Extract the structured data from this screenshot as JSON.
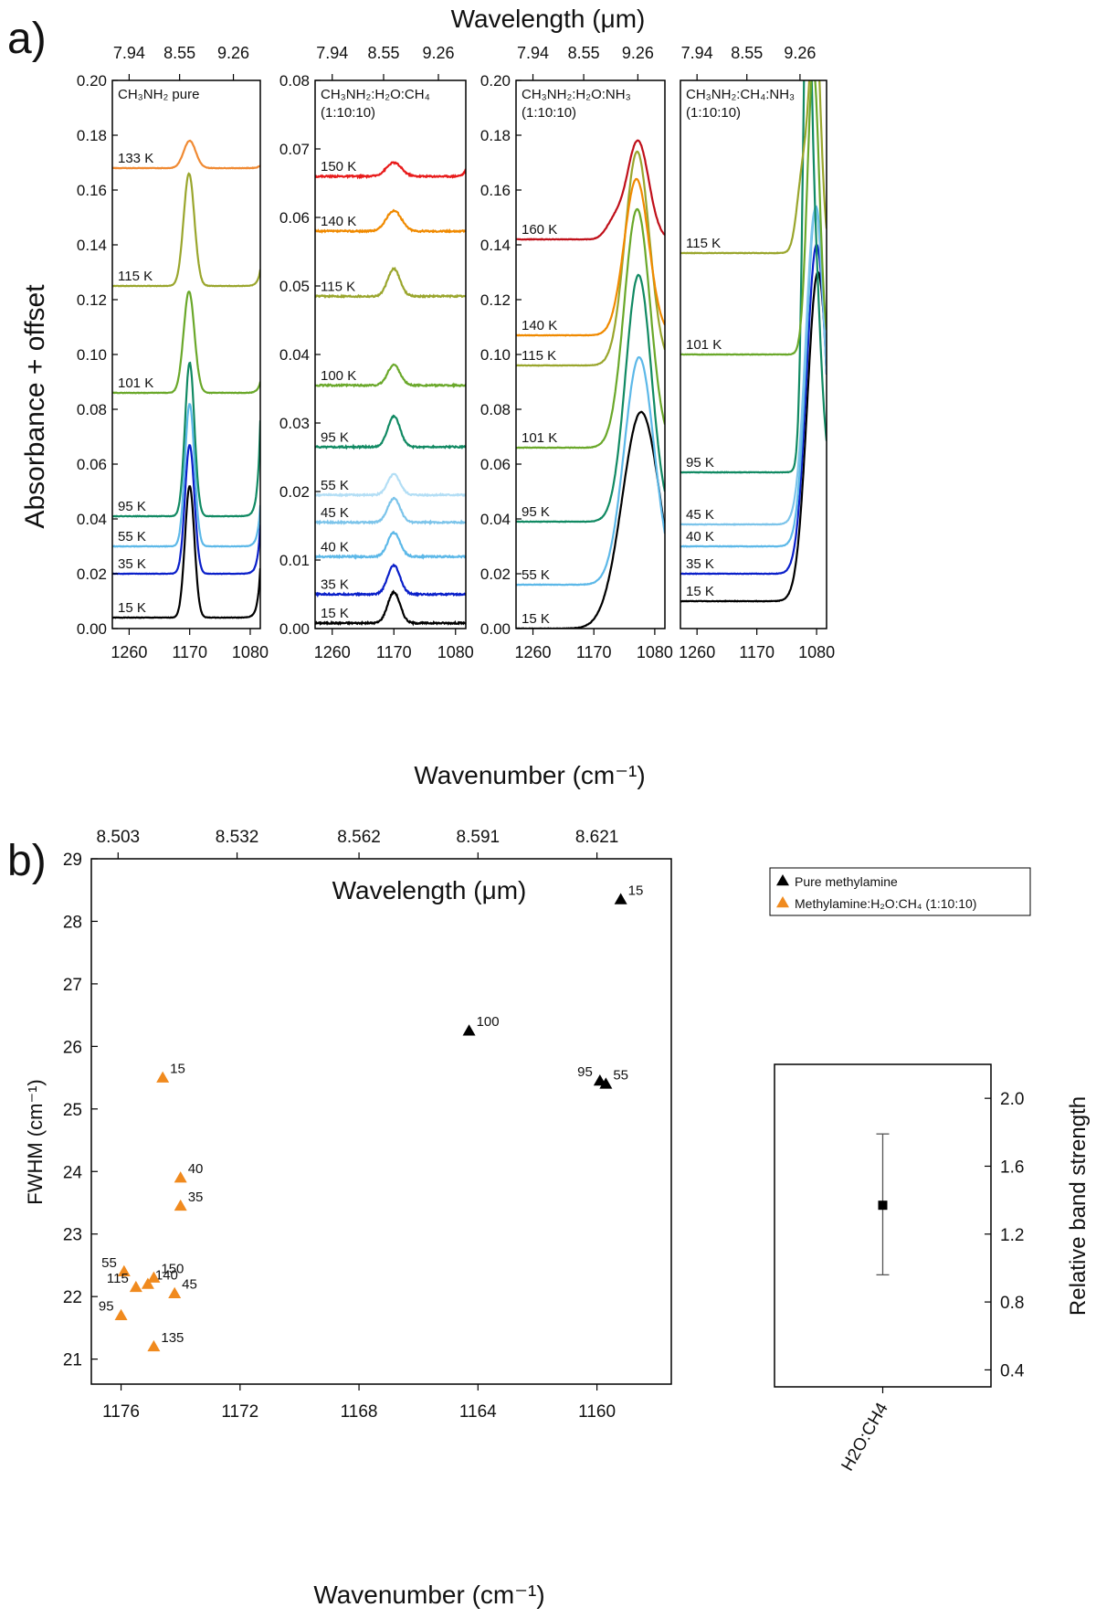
{
  "figure": {
    "panel_a_label": "a)",
    "panel_b_label": "b)",
    "a_top_axis_label": "Wavelength (μm)",
    "a_left_axis_label": "Absorbance + offset",
    "a_bottom_axis_label": "Wavenumber (cm⁻¹)",
    "b_top_axis_label": "Wavelength (μm)",
    "b_bottom_axis_label": "Wavenumber (cm⁻¹)",
    "b_left_axis_label": "FWHM (cm⁻¹)",
    "b_right_axis_label": "Relative band strength"
  },
  "chart_data": [
    {
      "type": "line",
      "panel": "a1",
      "title": "CH₃NH₂ pure",
      "ylim": [
        0,
        0.2
      ],
      "yticks": [
        0.0,
        0.02,
        0.04,
        0.06,
        0.08,
        0.1,
        0.12,
        0.14,
        0.16,
        0.18,
        0.2
      ],
      "xlim": [
        1285,
        1065
      ],
      "xticks": [
        1260,
        1170,
        1080
      ],
      "top_ticks": [
        "7.94",
        "8.55",
        "9.26"
      ],
      "series": [
        {
          "label": "15 K",
          "color": "#000000",
          "base": 0.004,
          "peaks": [
            {
              "c": 1170,
              "h": 0.048,
              "w": 7
            }
          ],
          "end_rise": 0.018
        },
        {
          "label": "35 K",
          "color": "#0a1fc9",
          "base": 0.02,
          "peaks": [
            {
              "c": 1170,
              "h": 0.047,
              "w": 7
            }
          ],
          "end_rise": 0.018
        },
        {
          "label": "55 K",
          "color": "#5cb8e8",
          "base": 0.03,
          "peaks": [
            {
              "c": 1170,
              "h": 0.052,
              "w": 7
            }
          ],
          "end_rise": 0.015
        },
        {
          "label": "95 K",
          "color": "#118a63",
          "base": 0.041,
          "peaks": [
            {
              "c": 1170,
              "h": 0.056,
              "w": 7
            }
          ],
          "end_rise": 0.035
        },
        {
          "label": "101 K",
          "color": "#6aa82a",
          "base": 0.086,
          "peaks": [
            {
              "c": 1171,
              "h": 0.037,
              "w": 8
            }
          ],
          "end_rise": 0.004
        },
        {
          "label": "115 K",
          "color": "#9aa62d",
          "base": 0.125,
          "peaks": [
            {
              "c": 1171,
              "h": 0.041,
              "w": 8
            }
          ],
          "end_rise": 0.006
        },
        {
          "label": "133 K",
          "color": "#f08a33",
          "base": 0.168,
          "peaks": [
            {
              "c": 1170,
              "h": 0.01,
              "w": 9
            }
          ],
          "end_rise": 0.001
        }
      ]
    },
    {
      "type": "line",
      "panel": "a2",
      "title": "CH₃NH₂:H₂O:CH₄",
      "subtitle": "(1:10:10)",
      "ylim": [
        0,
        0.08
      ],
      "yticks": [
        0.0,
        0.01,
        0.02,
        0.03,
        0.04,
        0.05,
        0.06,
        0.07,
        0.08
      ],
      "xlim": [
        1285,
        1065
      ],
      "xticks": [
        1260,
        1170,
        1080
      ],
      "top_ticks": [
        "7.94",
        "8.55",
        "9.26"
      ],
      "series": [
        {
          "label": "15 K",
          "color": "#000000",
          "base": 0.0008,
          "peaks": [
            {
              "c": 1170,
              "h": 0.0045,
              "w": 9
            }
          ],
          "end_rise": 0
        },
        {
          "label": "35 K",
          "color": "#0a1fc9",
          "base": 0.005,
          "peaks": [
            {
              "c": 1170,
              "h": 0.0042,
              "w": 9
            }
          ],
          "end_rise": 0
        },
        {
          "label": "40 K",
          "color": "#5cb8e8",
          "base": 0.0105,
          "peaks": [
            {
              "c": 1170,
              "h": 0.0035,
              "w": 9
            }
          ],
          "end_rise": 0
        },
        {
          "label": "45 K",
          "color": "#7cc4ea",
          "base": 0.0155,
          "peaks": [
            {
              "c": 1170,
              "h": 0.0035,
              "w": 9
            }
          ],
          "end_rise": 0
        },
        {
          "label": "55 K",
          "color": "#b3def5",
          "base": 0.0195,
          "peaks": [
            {
              "c": 1170,
              "h": 0.003,
              "w": 9
            }
          ],
          "end_rise": 0
        },
        {
          "label": "95 K",
          "color": "#118a63",
          "base": 0.0265,
          "peaks": [
            {
              "c": 1170,
              "h": 0.0045,
              "w": 9
            }
          ],
          "end_rise": 0
        },
        {
          "label": "100 K",
          "color": "#6aa82a",
          "base": 0.0355,
          "peaks": [
            {
              "c": 1170,
              "h": 0.003,
              "w": 9
            }
          ],
          "end_rise": 0
        },
        {
          "label": "115 K",
          "color": "#9aa62d",
          "base": 0.0485,
          "peaks": [
            {
              "c": 1170,
              "h": 0.004,
              "w": 9
            }
          ],
          "end_rise": 0
        },
        {
          "label": "140 K",
          "color": "#f08a00",
          "base": 0.058,
          "peaks": [
            {
              "c": 1170,
              "h": 0.003,
              "w": 11
            }
          ],
          "end_rise": 0
        },
        {
          "label": "150 K",
          "color": "#e81a1a",
          "base": 0.066,
          "peaks": [
            {
              "c": 1170,
              "h": 0.002,
              "w": 11
            }
          ],
          "end_rise": 0.001
        }
      ]
    },
    {
      "type": "line",
      "panel": "a3",
      "title": "CH₃NH₂:H₂O:NH₃",
      "subtitle": "(1:10:10)",
      "ylim": [
        0,
        0.2
      ],
      "yticks": [
        0.0,
        0.02,
        0.04,
        0.06,
        0.08,
        0.1,
        0.12,
        0.14,
        0.16,
        0.18,
        0.2
      ],
      "xlim": [
        1285,
        1065
      ],
      "xticks": [
        1260,
        1170,
        1080
      ],
      "top_ticks": [
        "7.94",
        "8.55",
        "9.26"
      ],
      "series": [
        {
          "label": "15 K",
          "color": "#000000",
          "base": 0.0,
          "peaks": [
            {
              "c": 1100,
              "h": 0.079,
              "w": 28
            }
          ],
          "end_rise": 0
        },
        {
          "label": "55 K",
          "color": "#5cb8e8",
          "base": 0.016,
          "peaks": [
            {
              "c": 1103,
              "h": 0.083,
              "w": 22
            }
          ],
          "end_rise": 0
        },
        {
          "label": "95 K",
          "color": "#118a63",
          "base": 0.039,
          "peaks": [
            {
              "c": 1104,
              "h": 0.09,
              "w": 19
            }
          ],
          "end_rise": 0
        },
        {
          "label": "101 K",
          "color": "#6aa82a",
          "base": 0.066,
          "peaks": [
            {
              "c": 1106,
              "h": 0.087,
              "w": 19
            }
          ],
          "end_rise": 0
        },
        {
          "label": "115 K",
          "color": "#9aa62d",
          "base": 0.096,
          "peaks": [
            {
              "c": 1106,
              "h": 0.078,
              "w": 18
            }
          ],
          "end_rise": 0
        },
        {
          "label": "140 K",
          "color": "#f08a00",
          "base": 0.107,
          "peaks": [
            {
              "c": 1107,
              "h": 0.057,
              "w": 18
            }
          ],
          "end_rise": 0
        },
        {
          "label": "160 K",
          "color": "#c0101a",
          "base": 0.142,
          "peaks": [
            {
              "c": 1105,
              "h": 0.036,
              "w": 16
            },
            {
              "c": 1140,
              "h": 0.006,
              "w": 12
            }
          ],
          "end_rise": 0
        }
      ]
    },
    {
      "type": "line",
      "panel": "a4",
      "title": "CH₃NH₂:CH₄:NH₃",
      "subtitle": "(1:10:10)",
      "ylim": [
        0,
        0.2
      ],
      "yticks": [],
      "xlim": [
        1285,
        1065
      ],
      "xticks": [
        1260,
        1170,
        1080
      ],
      "top_ticks": [
        "7.94",
        "8.55",
        "9.26"
      ],
      "series": [
        {
          "label": "15 K",
          "color": "#000000",
          "base": 0.01,
          "peaks": [
            {
              "c": 1078,
              "h": 0.12,
              "w": 16
            }
          ],
          "end_rise": 0
        },
        {
          "label": "35 K",
          "color": "#0a1fc9",
          "base": 0.02,
          "peaks": [
            {
              "c": 1080,
              "h": 0.12,
              "w": 15
            }
          ],
          "end_rise": 0
        },
        {
          "label": "40 K",
          "color": "#5cb8e8",
          "base": 0.03,
          "peaks": [
            {
              "c": 1081,
              "h": 0.124,
              "w": 14
            }
          ],
          "end_rise": 0
        },
        {
          "label": "45 K",
          "color": "#7cc4ea",
          "base": 0.038,
          "peaks": [
            {
              "c": 1082,
              "h": 0.115,
              "w": 14
            }
          ],
          "end_rise": 0
        },
        {
          "label": "95 K",
          "color": "#118a63",
          "base": 0.057,
          "peaks": [
            {
              "c": 1095,
              "h": 0.138,
              "w": 6
            },
            {
              "c": 1085,
              "h": 0.085,
              "w": 10
            }
          ],
          "end_rise": 0
        },
        {
          "label": "101 K",
          "color": "#6aa82a",
          "base": 0.1,
          "peaks": [
            {
              "c": 1085,
              "h": 0.105,
              "w": 9
            }
          ],
          "end_rise": 0
        },
        {
          "label": "115 K",
          "color": "#9aa62d",
          "base": 0.137,
          "peaks": [
            {
              "c": 1082,
              "h": 0.085,
              "w": 8
            },
            {
              "c": 1100,
              "h": 0.03,
              "w": 9
            }
          ],
          "end_rise": 0
        }
      ]
    },
    {
      "type": "scatter",
      "panel": "b-main",
      "xlim": [
        1177,
        1157.5
      ],
      "ylim": [
        20.6,
        29
      ],
      "xticks": [
        1176,
        1172,
        1168,
        1164,
        1160
      ],
      "yticks": [
        21,
        22,
        23,
        24,
        25,
        26,
        27,
        28,
        29
      ],
      "top_ticks": [
        {
          "label": "8.503",
          "x": 1176.1
        },
        {
          "label": "8.532",
          "x": 1172.1
        },
        {
          "label": "8.562",
          "x": 1168.0
        },
        {
          "label": "8.591",
          "x": 1164.0
        },
        {
          "label": "8.621",
          "x": 1160.0
        }
      ],
      "legend_position": "top-right",
      "series": [
        {
          "name": "Pure methylamine",
          "color": "#000000",
          "points": [
            {
              "x": 1159.2,
              "y": 28.35,
              "label": "15"
            },
            {
              "x": 1164.3,
              "y": 26.25,
              "label": "100"
            },
            {
              "x": 1159.9,
              "y": 25.45,
              "label": "95"
            },
            {
              "x": 1159.7,
              "y": 25.4,
              "label": "55"
            }
          ]
        },
        {
          "name": "Methylamine:H₂O:CH₄ (1:10:10)",
          "color": "#f08a1e",
          "points": [
            {
              "x": 1174.6,
              "y": 25.5,
              "label": "15"
            },
            {
              "x": 1174.0,
              "y": 23.9,
              "label": "40"
            },
            {
              "x": 1174.0,
              "y": 23.45,
              "label": "35"
            },
            {
              "x": 1175.9,
              "y": 22.4,
              "label": "55"
            },
            {
              "x": 1175.5,
              "y": 22.15,
              "label": "115"
            },
            {
              "x": 1175.1,
              "y": 22.2,
              "label": "140"
            },
            {
              "x": 1174.9,
              "y": 22.3,
              "label": "150"
            },
            {
              "x": 1174.2,
              "y": 22.05,
              "label": "45"
            },
            {
              "x": 1176.0,
              "y": 21.7,
              "label": "95"
            },
            {
              "x": 1174.9,
              "y": 21.2,
              "label": "135"
            }
          ]
        }
      ]
    },
    {
      "type": "scatter",
      "panel": "b-side",
      "categories": [
        "H2O:CH4"
      ],
      "ylim": [
        0.3,
        2.2
      ],
      "yticks": [
        0.4,
        0.8,
        1.2,
        1.6,
        2.0
      ],
      "points": [
        {
          "category": "H2O:CH4",
          "y": 1.37,
          "err_low": 0.96,
          "err_high": 1.79
        }
      ]
    }
  ]
}
